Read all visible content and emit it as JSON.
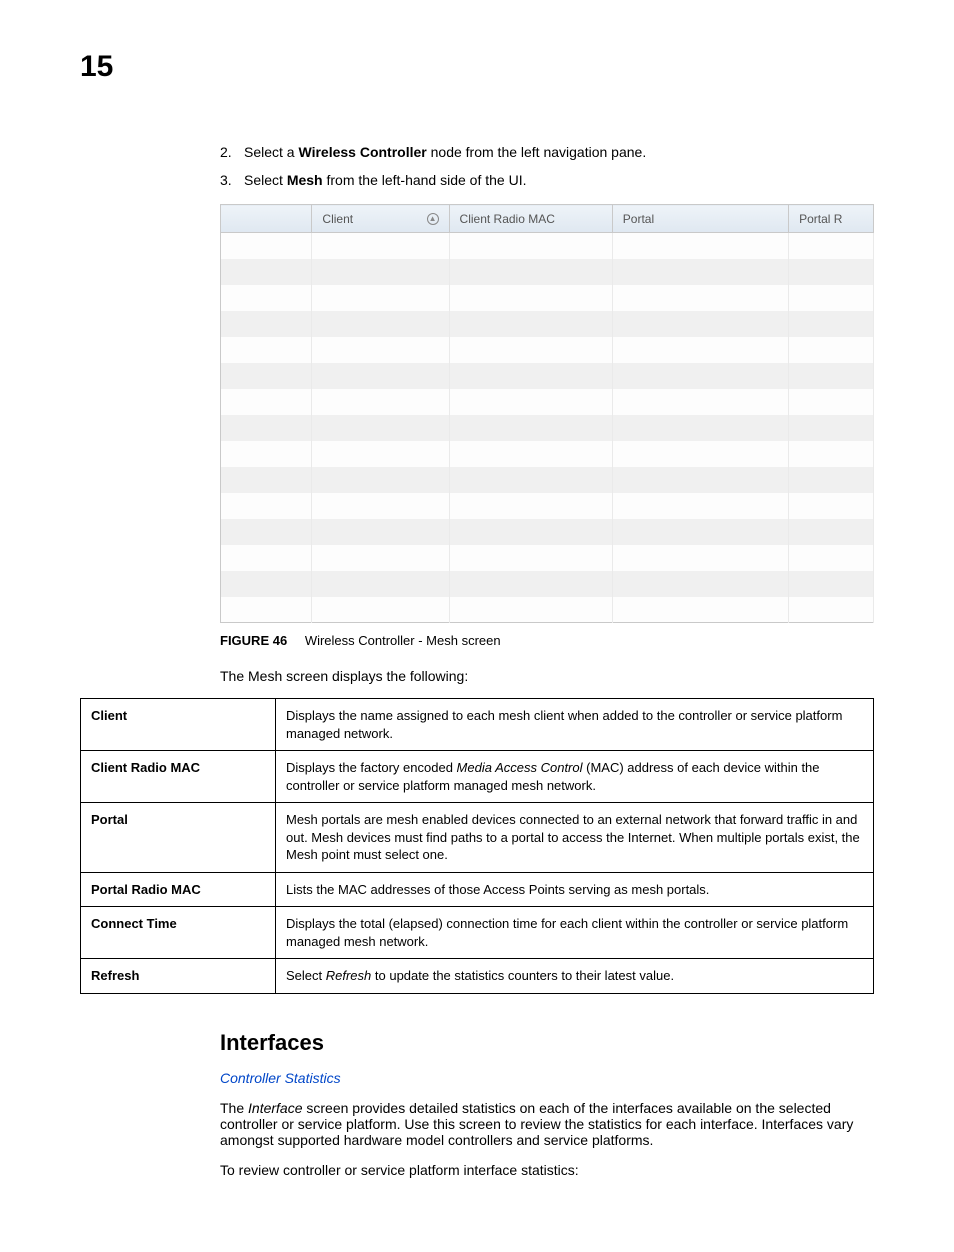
{
  "page_number": "15",
  "steps": [
    {
      "num": "2.",
      "pre": "Select a ",
      "bold": "Wireless Controller",
      "post": " node from the left navigation pane."
    },
    {
      "num": "3.",
      "pre": "Select ",
      "bold": "Mesh",
      "post": " from the left-hand side of the UI."
    }
  ],
  "mesh_screenshot": {
    "headers": [
      "",
      "Client",
      "Client Radio MAC",
      "Portal",
      "Portal R"
    ],
    "sort_col_index": 1,
    "row_count": 15,
    "col_widths_pct": [
      14,
      21,
      25,
      27,
      13
    ],
    "header_gradient_top": "#eef3f8",
    "header_gradient_bottom": "#dfe8f1",
    "row_odd_bg": "#fdfdfd",
    "row_even_bg": "#f0f0f0",
    "border_color": "#c9c9c9"
  },
  "figure": {
    "label": "FIGURE 46",
    "caption": "Wireless Controller - Mesh screen"
  },
  "intro_para": "The Mesh screen displays the following:",
  "desc_rows": [
    {
      "term": "Client",
      "def_pre": "Displays the name assigned to each mesh client when added to the controller or service platform managed network.",
      "italic": "",
      "def_post": ""
    },
    {
      "term": "Client Radio MAC",
      "def_pre": "Displays the factory encoded ",
      "italic": "Media Access Control",
      "def_post": " (MAC) address of each device within the controller or service platform managed mesh network."
    },
    {
      "term": "Portal",
      "def_pre": "Mesh portals are mesh enabled devices connected to an external network that forward traffic in and out. Mesh devices must find paths to a portal to access the Internet. When multiple portals exist, the Mesh point must select one.",
      "italic": "",
      "def_post": ""
    },
    {
      "term": "Portal Radio MAC",
      "def_pre": "Lists the MAC addresses of those Access Points serving as mesh portals.",
      "italic": "",
      "def_post": ""
    },
    {
      "term": "Connect Time",
      "def_pre": "Displays the total (elapsed) connection time for each client within the controller or service platform managed mesh network.",
      "italic": "",
      "def_post": ""
    },
    {
      "term": "Refresh",
      "def_pre": "Select ",
      "italic": "Refresh",
      "def_post": " to update the statistics counters to their latest value."
    }
  ],
  "section": {
    "heading": "Interfaces",
    "link": "Controller Statistics",
    "para1_pre": "The ",
    "para1_italic": "Interface",
    "para1_post": " screen provides detailed statistics on each of the interfaces available on the selected controller or service platform. Use this screen to review the statistics for each interface. Interfaces vary amongst supported hardware model controllers and service platforms.",
    "para2": "To review controller or service platform interface statistics:"
  }
}
